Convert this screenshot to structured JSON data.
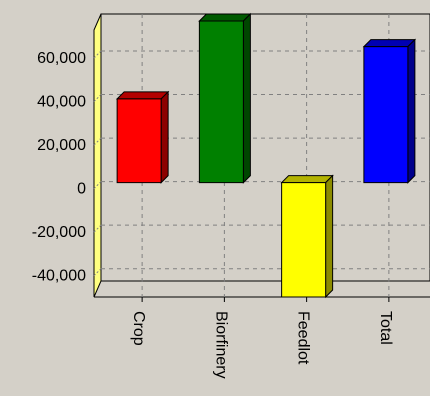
{
  "chart_data": {
    "type": "bar",
    "categories": [
      "Crop",
      "Biorfinery",
      "Feedlot",
      "Total"
    ],
    "values": [
      38000,
      77000,
      -54000,
      62000
    ],
    "ylim": [
      -53000,
      77000
    ],
    "yticks": [
      -40000,
      -20000,
      0,
      20000,
      40000,
      60000
    ],
    "ytick_labels": [
      "-40,000",
      "-20,000",
      "0",
      "20,000",
      "40,000",
      "60,000"
    ],
    "grid": true,
    "colors": [
      "#ff0000",
      "#008000",
      "#ffff00",
      "#0000ff"
    ],
    "axis_wall_color": "#ffff80",
    "plot_background": "#d4d0c8"
  }
}
